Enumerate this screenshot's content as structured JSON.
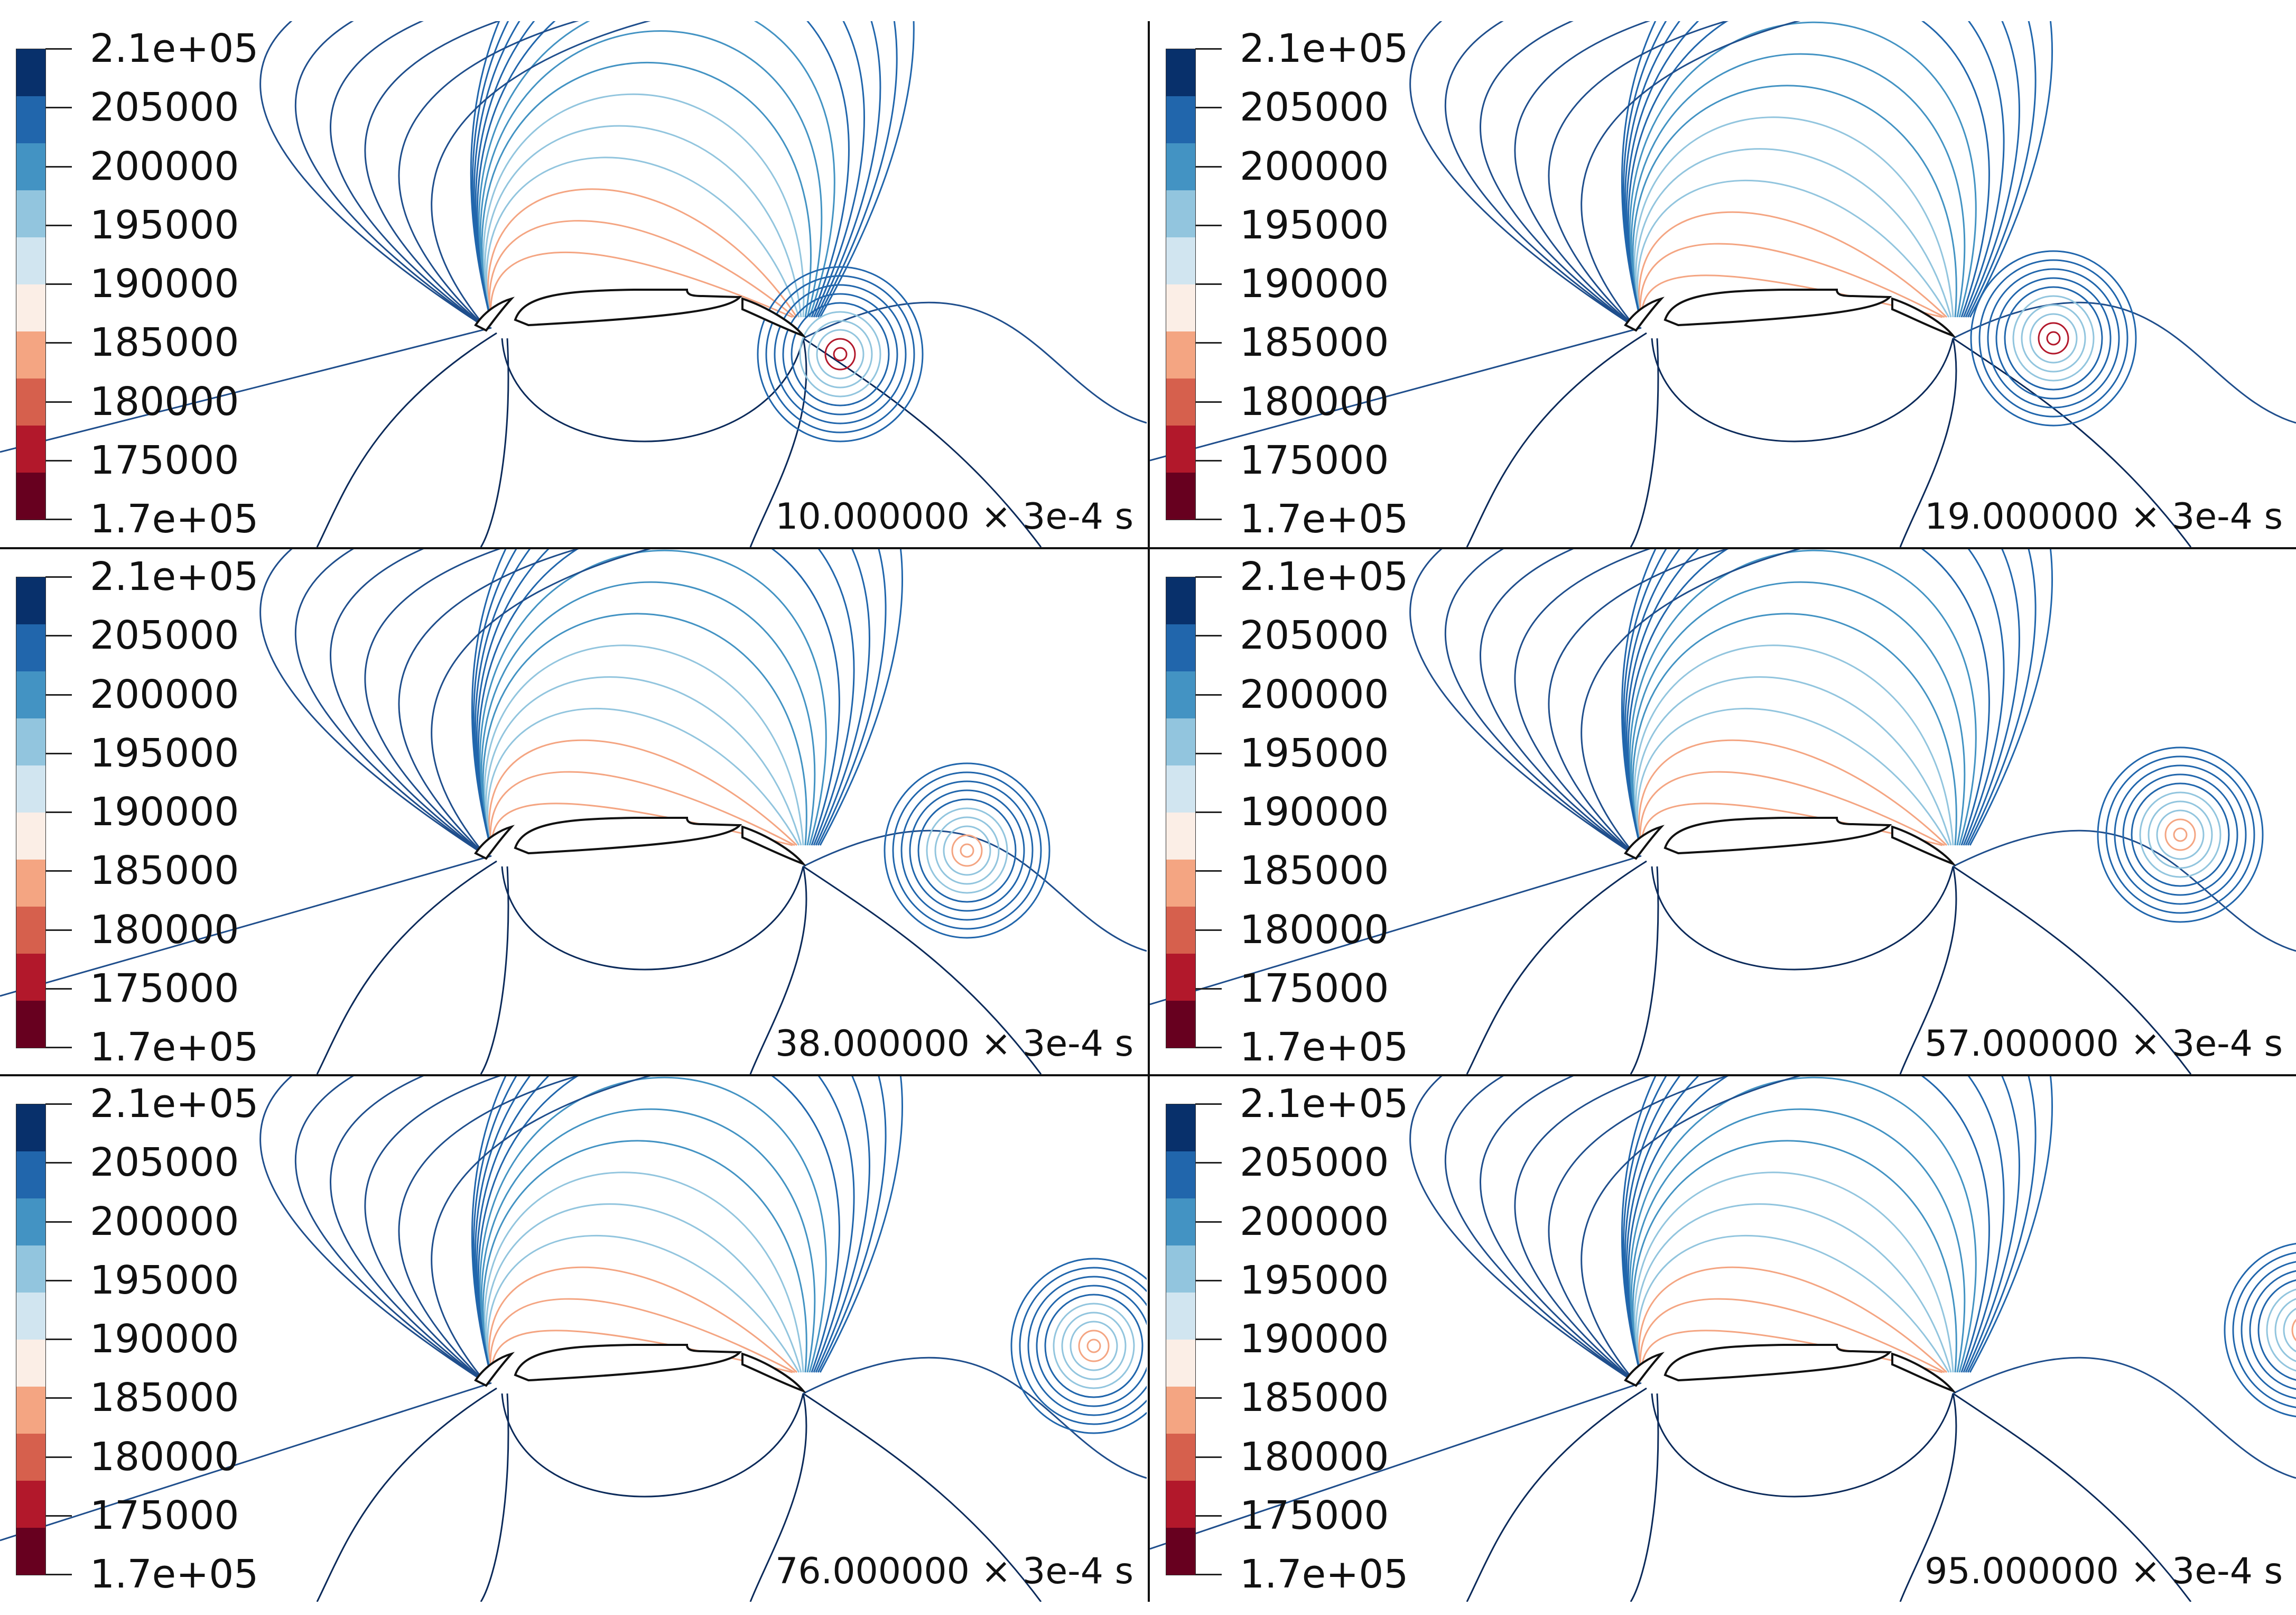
{
  "colorbar": {
    "colors": [
      "#08306b",
      "#2166ac",
      "#4393c3",
      "#92c5de",
      "#d1e5f0",
      "#fbeee6",
      "#f4a582",
      "#d6604d",
      "#b2182b",
      "#67001f"
    ],
    "ticks": [
      {
        "label": "2.1e+05",
        "value": 210000
      },
      {
        "label": "205000",
        "value": 205000
      },
      {
        "label": "200000",
        "value": 200000
      },
      {
        "label": "195000",
        "value": 195000
      },
      {
        "label": "190000",
        "value": 190000
      },
      {
        "label": "185000",
        "value": 185000
      },
      {
        "label": "180000",
        "value": 180000
      },
      {
        "label": "175000",
        "value": 175000
      },
      {
        "label": "1.7e+05",
        "value": 170000
      }
    ]
  },
  "panels": [
    {
      "time": "10.000000 × 3e-4 s"
    },
    {
      "time": "19.000000 × 3e-4 s"
    },
    {
      "time": "38.000000 × 3e-4 s"
    },
    {
      "time": "57.000000 × 3e-4 s"
    },
    {
      "time": "76.000000 × 3e-4 s"
    },
    {
      "time": "95.000000 × 3e-4 s"
    }
  ]
}
